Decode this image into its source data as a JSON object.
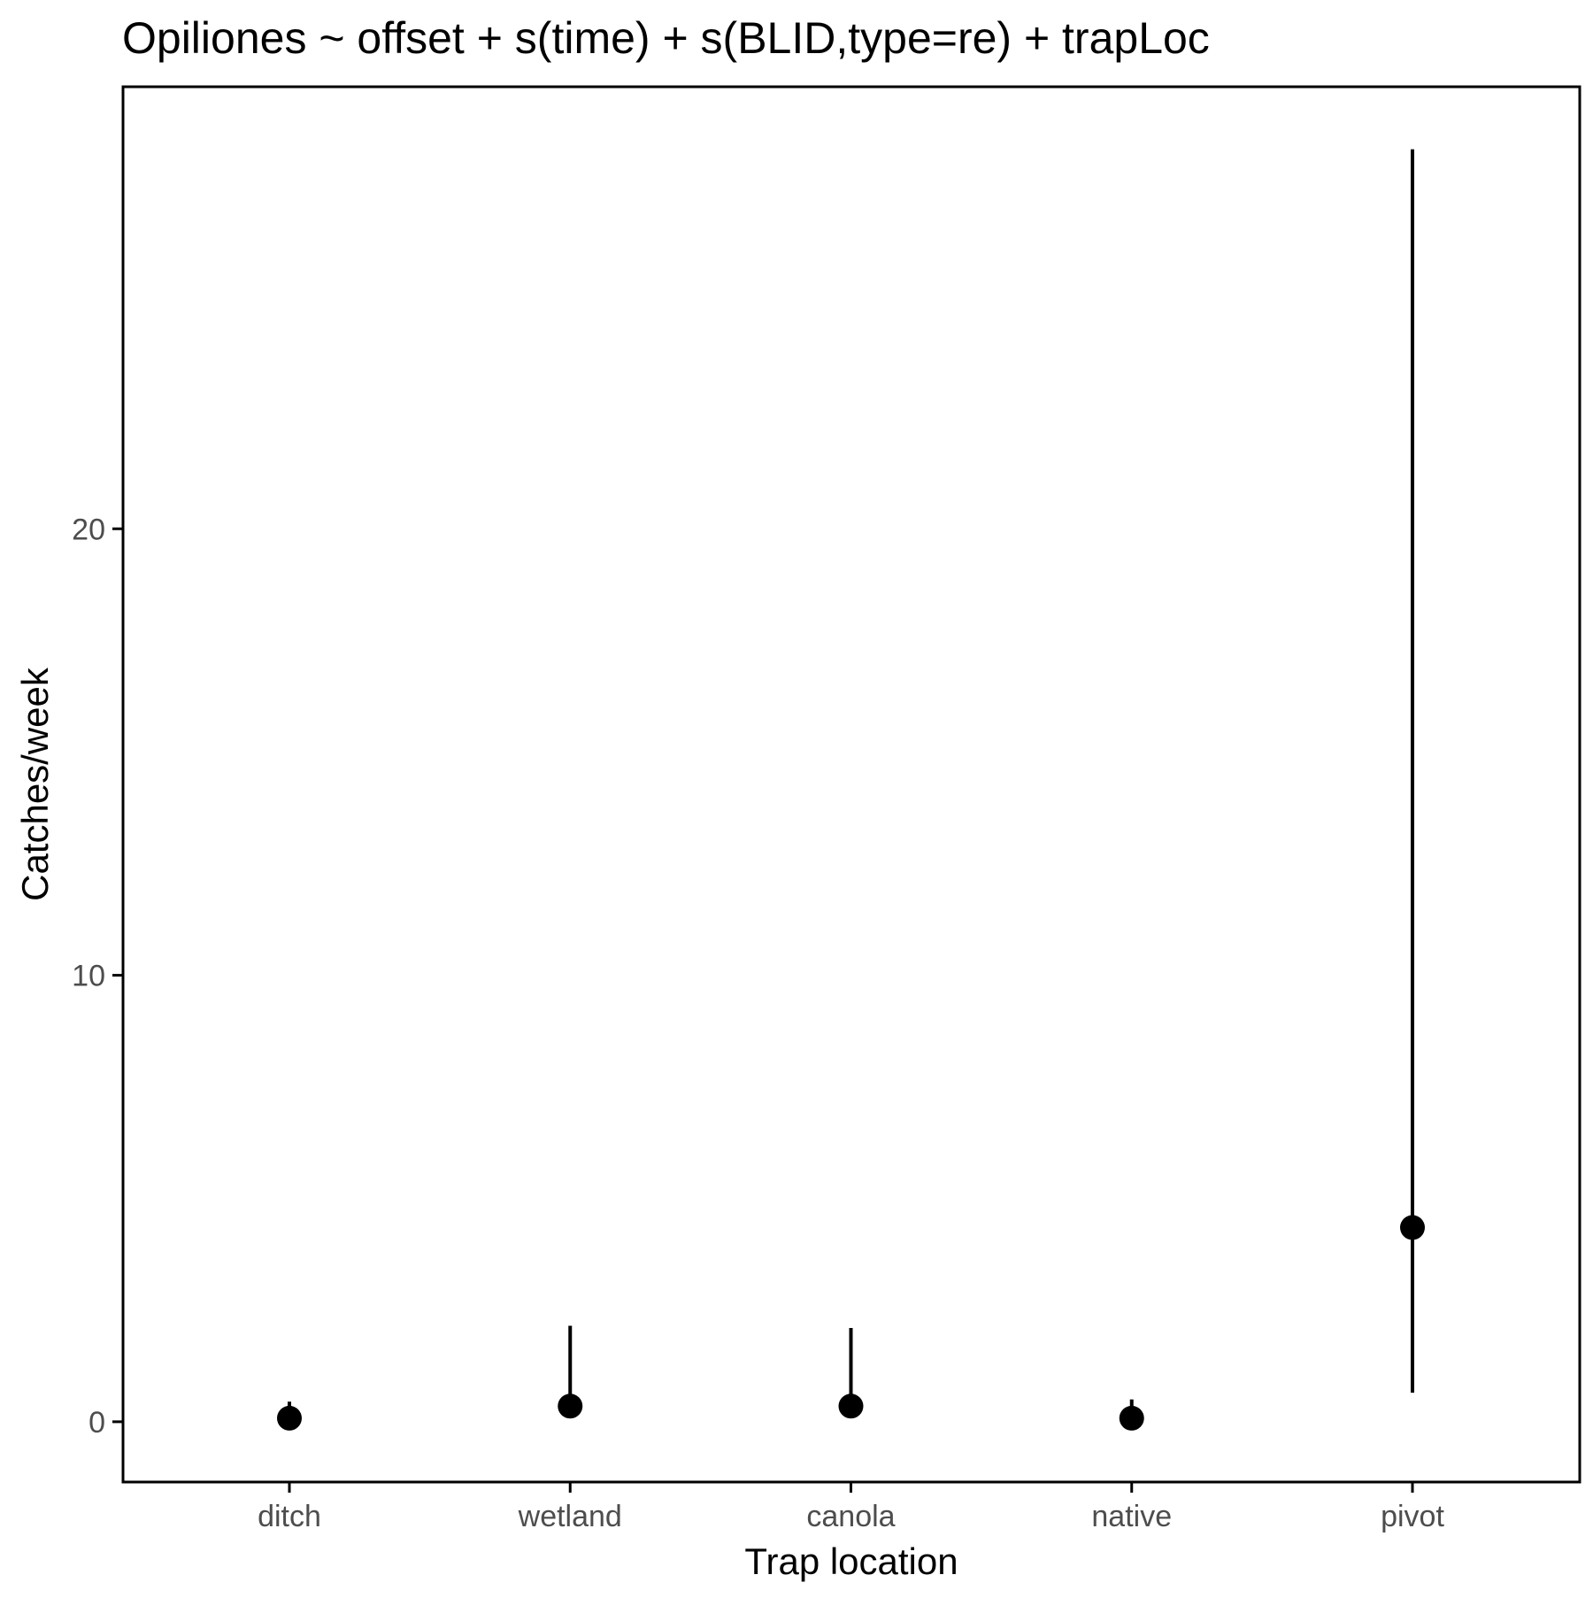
{
  "chart_data": {
    "type": "scatter",
    "title": "Opiliones ~ offset + s(time) + s(BLID,type=re) + trapLoc",
    "xlabel": "Trap location",
    "ylabel": "Catches/week",
    "categories": [
      "ditch",
      "wetland",
      "canola",
      "native",
      "pivot"
    ],
    "series": [
      {
        "values": [
          0.08,
          0.35,
          0.35,
          0.08,
          4.35
        ],
        "lower": [
          0.0,
          0.3,
          0.3,
          0.0,
          0.65
        ],
        "upper": [
          0.45,
          2.15,
          2.1,
          0.5,
          28.5
        ]
      }
    ],
    "ylim": [
      -1.35,
      29.9
    ],
    "yticks": [
      0,
      10,
      20
    ],
    "ytick_labels": [
      "0",
      "10",
      "20"
    ],
    "grid": false,
    "legend": "none",
    "colors": {
      "points": "#000000",
      "frame": "#000000",
      "tick_text": "#4d4d4d"
    }
  }
}
